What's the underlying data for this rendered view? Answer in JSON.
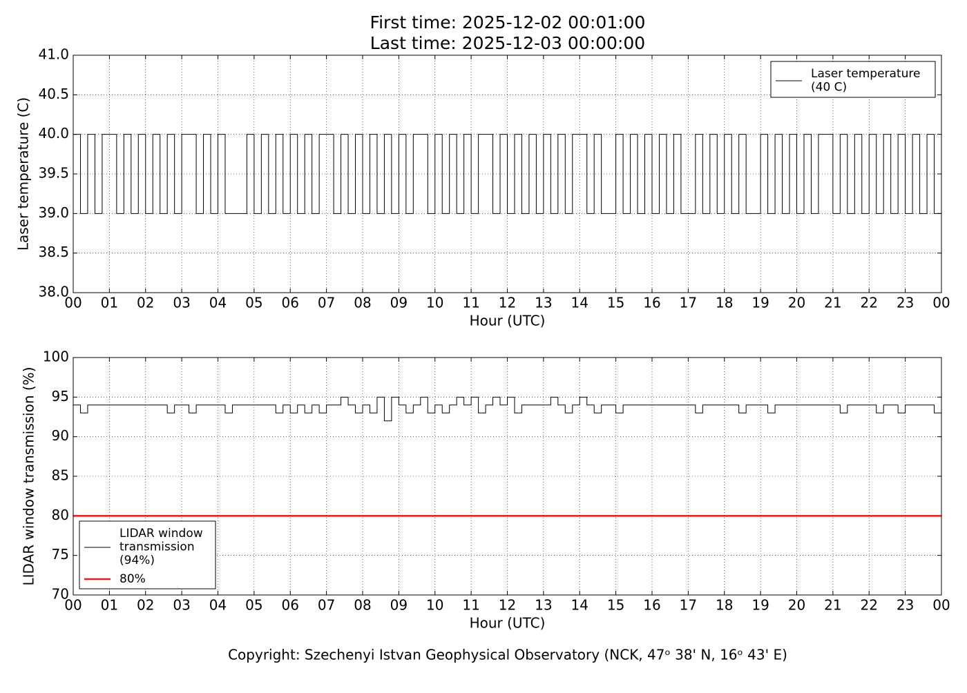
{
  "chart_data": [
    {
      "type": "line",
      "title": "First time: 2025-12-02 00:01:00",
      "subtitle": "Last time: 2025-12-03 00:00:00",
      "x_label": "Hour (UTC)",
      "y_label": "Laser temperature (C)",
      "xlim": [
        0,
        24
      ],
      "ylim": [
        38,
        41
      ],
      "grid": true,
      "legend": "upper right",
      "drawstyle": "steps",
      "xticks": [
        {
          "value": 0,
          "label": "00"
        },
        {
          "value": 1,
          "label": "01"
        },
        {
          "value": 2,
          "label": "02"
        },
        {
          "value": 3,
          "label": "03"
        },
        {
          "value": 4,
          "label": "04"
        },
        {
          "value": 5,
          "label": "05"
        },
        {
          "value": 6,
          "label": "06"
        },
        {
          "value": 7,
          "label": "07"
        },
        {
          "value": 8,
          "label": "08"
        },
        {
          "value": 9,
          "label": "09"
        },
        10,
        11,
        12,
        13,
        14,
        15,
        16,
        17,
        18,
        19,
        20,
        21,
        22,
        23,
        {
          "value": 24,
          "label": "00"
        }
      ],
      "yticks": [
        {
          "value": 38,
          "label": "38.0"
        },
        38.5,
        {
          "value": 39,
          "label": "39.0"
        },
        39.5,
        {
          "value": 40,
          "label": "40.0"
        },
        40.5,
        {
          "value": 41,
          "label": "41.0"
        }
      ],
      "x": [
        0,
        0.2,
        0.4,
        0.6,
        0.8,
        1,
        1.2,
        1.4,
        1.6,
        1.8,
        2,
        2.2,
        2.4,
        2.6,
        2.8,
        3,
        3.2,
        3.4,
        3.6,
        3.8,
        4,
        4.2,
        4.4,
        4.6,
        4.8,
        5,
        5.2,
        5.4,
        5.6,
        5.8,
        6,
        6.2,
        6.4,
        6.6,
        6.8,
        7,
        7.2,
        7.4,
        7.6,
        7.8,
        8,
        8.2,
        8.4,
        8.6,
        8.8,
        9,
        9.2,
        9.4,
        9.6,
        9.8,
        10,
        10.2,
        10.4,
        10.6,
        10.8,
        11,
        11.2,
        11.4,
        11.6,
        11.8,
        12,
        12.2,
        12.4,
        12.6,
        12.8,
        13,
        13.2,
        13.4,
        13.6,
        13.8,
        14,
        14.2,
        14.4,
        14.6,
        14.8,
        15,
        15.2,
        15.4,
        15.6,
        15.8,
        16,
        16.2,
        16.4,
        16.6,
        16.8,
        17,
        17.2,
        17.4,
        17.6,
        17.8,
        18,
        18.2,
        18.4,
        18.6,
        18.8,
        19,
        19.2,
        19.4,
        19.6,
        19.8,
        20,
        20.2,
        20.4,
        20.6,
        20.8,
        21,
        21.2,
        21.4,
        21.6,
        21.8,
        22,
        22.2,
        22.4,
        22.6,
        22.8,
        23,
        23.2,
        23.4,
        23.6,
        23.8,
        24
      ],
      "series": [
        {
          "name": "Laser temperature\n(40 C)",
          "color": "#000000",
          "values": [
            40,
            39,
            40,
            39,
            40,
            40,
            39,
            40,
            39,
            40,
            39,
            40,
            39,
            40,
            39,
            40,
            40,
            39,
            40,
            39,
            40,
            39,
            39,
            39,
            40,
            39,
            40,
            39,
            40,
            39,
            40,
            39,
            40,
            39,
            40,
            40,
            39,
            40,
            39,
            40,
            39,
            40,
            39,
            40,
            39,
            40,
            39,
            40,
            40,
            39,
            40,
            39,
            40,
            39,
            40,
            39,
            40,
            40,
            39,
            40,
            39,
            40,
            39,
            40,
            39,
            40,
            39,
            40,
            39,
            40,
            40,
            39,
            40,
            39,
            39,
            40,
            39,
            40,
            39,
            40,
            39,
            40,
            39,
            40,
            39,
            39,
            40,
            39,
            40,
            39,
            40,
            39,
            40,
            39,
            39,
            40,
            39,
            40,
            39,
            40,
            39,
            40,
            39,
            40,
            40,
            39,
            40,
            39,
            40,
            39,
            40,
            39,
            40,
            39,
            40,
            39,
            40,
            39,
            40,
            39,
            40
          ]
        }
      ]
    },
    {
      "type": "line",
      "x_label": "Hour (UTC)",
      "y_label": "LIDAR window transmission (%)",
      "xlim": [
        0,
        24
      ],
      "ylim": [
        70,
        100
      ],
      "grid": true,
      "legend": "lower left",
      "drawstyle": "steps",
      "xticks": [
        {
          "value": 0,
          "label": "00"
        },
        {
          "value": 1,
          "label": "01"
        },
        {
          "value": 2,
          "label": "02"
        },
        {
          "value": 3,
          "label": "03"
        },
        {
          "value": 4,
          "label": "04"
        },
        {
          "value": 5,
          "label": "05"
        },
        {
          "value": 6,
          "label": "06"
        },
        {
          "value": 7,
          "label": "07"
        },
        {
          "value": 8,
          "label": "08"
        },
        {
          "value": 9,
          "label": "09"
        },
        10,
        11,
        12,
        13,
        14,
        15,
        16,
        17,
        18,
        19,
        20,
        21,
        22,
        23,
        {
          "value": 24,
          "label": "00"
        }
      ],
      "yticks": [
        70,
        75,
        80,
        85,
        90,
        95,
        100
      ],
      "x": [
        0,
        0.2,
        0.4,
        0.6,
        0.8,
        1,
        1.2,
        1.4,
        1.6,
        1.8,
        2,
        2.2,
        2.4,
        2.6,
        2.8,
        3,
        3.2,
        3.4,
        3.6,
        3.8,
        4,
        4.2,
        4.4,
        4.6,
        4.8,
        5,
        5.2,
        5.4,
        5.6,
        5.8,
        6,
        6.2,
        6.4,
        6.6,
        6.8,
        7,
        7.2,
        7.4,
        7.6,
        7.8,
        8,
        8.2,
        8.4,
        8.6,
        8.8,
        9,
        9.2,
        9.4,
        9.6,
        9.8,
        10,
        10.2,
        10.4,
        10.6,
        10.8,
        11,
        11.2,
        11.4,
        11.6,
        11.8,
        12,
        12.2,
        12.4,
        12.6,
        12.8,
        13,
        13.2,
        13.4,
        13.6,
        13.8,
        14,
        14.2,
        14.4,
        14.6,
        14.8,
        15,
        15.2,
        15.4,
        15.6,
        15.8,
        16,
        16.2,
        16.4,
        16.6,
        16.8,
        17,
        17.2,
        17.4,
        17.6,
        17.8,
        18,
        18.2,
        18.4,
        18.6,
        18.8,
        19,
        19.2,
        19.4,
        19.6,
        19.8,
        20,
        20.2,
        20.4,
        20.6,
        20.8,
        21,
        21.2,
        21.4,
        21.6,
        21.8,
        22,
        22.2,
        22.4,
        22.6,
        22.8,
        23,
        23.2,
        23.4,
        23.6,
        23.8,
        24
      ],
      "series": [
        {
          "name": "LIDAR window\ntransmission\n(94%)",
          "color": "#000000",
          "values": [
            94,
            93,
            94,
            94,
            94,
            94,
            94,
            94,
            94,
            94,
            94,
            94,
            94,
            93,
            94,
            94,
            93,
            94,
            94,
            94,
            94,
            93,
            94,
            94,
            94,
            94,
            94,
            94,
            93,
            94,
            93,
            94,
            93,
            94,
            93,
            94,
            94,
            95,
            94,
            93,
            94,
            93,
            95,
            92,
            95,
            94,
            93,
            94,
            95,
            93,
            94,
            93,
            94,
            95,
            94,
            95,
            93,
            94,
            95,
            94,
            95,
            93,
            94,
            94,
            94,
            94,
            95,
            94,
            93,
            94,
            95,
            94,
            93,
            94,
            94,
            93,
            94,
            94,
            94,
            94,
            94,
            94,
            94,
            94,
            94,
            94,
            93,
            94,
            94,
            94,
            94,
            94,
            93,
            94,
            94,
            94,
            93,
            94,
            94,
            94,
            94,
            94,
            94,
            94,
            94,
            94,
            93,
            94,
            94,
            94,
            94,
            93,
            94,
            94,
            93,
            94,
            94,
            94,
            94,
            93,
            94
          ]
        },
        {
          "name": "80%",
          "color": "#e41a1c",
          "width": 2.5,
          "x": [
            0,
            24
          ],
          "values": [
            80,
            80
          ]
        }
      ]
    }
  ],
  "footer": "Copyright: Szechenyi Istvan Geophysical Observatory (NCK, 47ᵒ  38' N, 16ᵒ  43' E)"
}
